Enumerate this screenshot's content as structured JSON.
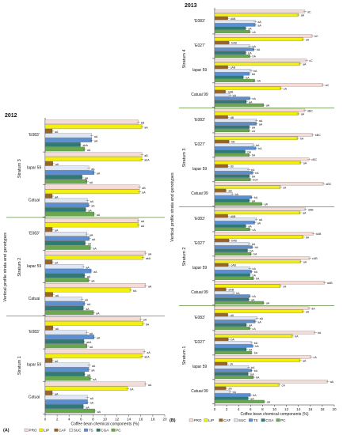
{
  "chart_data": [
    {
      "type": "bar",
      "orientation": "horizontal",
      "panel_label": "(A)",
      "year": "2012",
      "ylabel": "Vertical profile strata and genotypes",
      "xlabel": "Coffee bean chemical components (%)",
      "xlim": [
        0,
        20
      ],
      "xticks": [
        "0",
        "2",
        "4",
        "6",
        "8",
        "10",
        "12",
        "14",
        "16",
        "18",
        "20"
      ],
      "series_names": [
        "PRO",
        "LIP",
        "CAF",
        "SUC",
        "TS",
        "CGA",
        "PC"
      ],
      "strata": [
        {
          "name": "Stratum 3",
          "groups": [
            {
              "genotype": "'E083'",
              "values": [
                15.6,
                16.2,
                1.2,
                7.8,
                7.8,
                5.9,
                6.6
              ],
              "labels": [
                "bB",
                "aA",
                "aA",
                "aA",
                "aA",
                "abA",
                "aA"
              ]
            },
            {
              "genotype": "Iapar 59",
              "values": [
                16.2,
                16.2,
                1.3,
                7.3,
                8.2,
                6.2,
                7.0
              ],
              "labels": [
                "aB",
                "abA",
                "aA",
                "aA",
                "aA",
                "aA",
                "aA"
              ]
            },
            {
              "genotype": "Catuai",
              "values": [
                15.8,
                15.8,
                1.2,
                7.1,
                7.3,
                6.8,
                8.2
              ],
              "labels": [
                "aB",
                "aA",
                "aA",
                "aA",
                "aA",
                "aA",
                "aA"
              ]
            }
          ]
        },
        {
          "name": "Stratum 2",
          "groups": [
            {
              "genotype": "'E083'",
              "values": [
                15.6,
                15.6,
                1.2,
                7.0,
                7.4,
                6.7,
                7.6
              ],
              "labels": [
                "aA",
                "aA",
                "aA",
                "aA",
                "aA",
                "aA",
                "aA"
              ]
            },
            {
              "genotype": "Iapar 59",
              "values": [
                16.8,
                16.4,
                1.2,
                6.4,
                7.7,
                6.6,
                7.3
              ],
              "labels": [
                "aA",
                "abA",
                "aA",
                "aA",
                "aA",
                "aA",
                "aA"
              ]
            },
            {
              "genotype": "Catuai",
              "values": [
                16.8,
                14.3,
                1.3,
                6.2,
                6.6,
                6.4,
                8.1
              ],
              "labels": [
                "aA",
                "bA",
                "aA",
                "aA",
                "aA",
                "aA",
                "aA"
              ]
            }
          ]
        },
        {
          "name": "Stratum 1",
          "groups": [
            {
              "genotype": "'E083'",
              "values": [
                16.0,
                16.4,
                1.3,
                7.0,
                8.2,
                6.5,
                7.0
              ],
              "labels": [
                "aA",
                "bA",
                "aA",
                "aA",
                "aA",
                "abA",
                "aA"
              ]
            },
            {
              "genotype": "Iapar 59",
              "values": [
                16.6,
                16.2,
                1.2,
                7.4,
                7.3,
                6.6,
                7.6
              ],
              "labels": [
                "aA",
                "abA",
                "aA",
                "aA",
                "aA",
                "aA",
                "aA"
              ]
            },
            {
              "genotype": "Catuai",
              "values": [
                16.8,
                13.8,
                1.2,
                7.1,
                7.1,
                6.4,
                8.3
              ],
              "labels": [
                "aA",
                "bA",
                "aA",
                "aA",
                "aA",
                "aA",
                "aA"
              ]
            }
          ]
        }
      ]
    },
    {
      "type": "bar",
      "orientation": "horizontal",
      "panel_label": "(B)",
      "year": "2013",
      "ylabel": "Vertical profile strata and genotypes",
      "xlabel": "Coffee bean chemical components (%)",
      "xlim": [
        0,
        20
      ],
      "xticks": [
        "0",
        "2",
        "4",
        "6",
        "8",
        "10",
        "12",
        "14",
        "16",
        "18",
        "20"
      ],
      "series_names": [
        "PRO",
        "LIP",
        "CAF",
        "SUC",
        "TS",
        "CGA",
        "PC"
      ],
      "strata": [
        {
          "name": "Stratum 4",
          "groups": [
            {
              "genotype": "'E083'",
              "values": [
                15.1,
                14.0,
                2.2,
                6.8,
                6.8,
                5.2,
                5.9
              ],
              "labels": [
                "dC",
                "aA",
                "dAB",
                "aA",
                "aA",
                "aA",
                "cA"
              ]
            },
            {
              "genotype": "'E027'",
              "values": [
                16.3,
                14.8,
                2.4,
                5.9,
                6.6,
                5.2,
                5.9
              ],
              "labels": [
                "bC",
                "aA",
                "bAB",
                "bA",
                "bA",
                "bA",
                "bA"
              ]
            },
            {
              "genotype": "Iapar 59",
              "values": [
                15.4,
                14.3,
                2.2,
                6.1,
                5.8,
                4.8,
                6.7
              ],
              "labels": [
                "cC",
                "aA",
                "cAB",
                "bA",
                "bA",
                "bA",
                "bA"
              ]
            },
            {
              "genotype": "Catuai 99",
              "values": [
                18.1,
                11.1,
                1.8,
                2.6,
                5.9,
                5.3,
                8.2
              ],
              "labels": [
                "aC",
                "cA",
                "aAB",
                "bA",
                "bA",
                "aA",
                "aA"
              ]
            }
          ]
        },
        {
          "name": "Stratum 3",
          "groups": [
            {
              "genotype": "'E083'",
              "values": [
                15.1,
                14.0,
                2.2,
                7.0,
                7.0,
                5.8,
                5.8
              ],
              "labels": [
                "dBC",
                "aA",
                "dB",
                "aA",
                "aA",
                "aA",
                "cA"
              ]
            },
            {
              "genotype": "'E027'",
              "values": [
                16.4,
                13.9,
                2.4,
                6.5,
                6.9,
                5.1,
                5.8
              ],
              "labels": [
                "bBC",
                "bA",
                "bB",
                "bA",
                "bA",
                "bA",
                "bA"
              ]
            },
            {
              "genotype": "Iapar 59",
              "values": [
                15.8,
                14.4,
                2.2,
                5.7,
                6.4,
                5.8,
                6.0
              ],
              "labels": [
                "cBC",
                "aA",
                "cB",
                "bA",
                "bA",
                "bA",
                "bcA"
              ]
            },
            {
              "genotype": "Catuai 99",
              "values": [
                18.2,
                11.0,
                1.9,
                3.0,
                6.2,
                5.8,
                7.9
              ],
              "labels": [
                "aBC",
                "cA",
                "aB",
                "bA",
                "bA",
                "aA",
                "aA"
              ]
            }
          ]
        },
        {
          "name": "Stratum 2",
          "groups": [
            {
              "genotype": "'E083'",
              "values": [
                15.2,
                14.3,
                2.2,
                7.0,
                6.7,
                5.2,
                5.9
              ],
              "labels": [
                "dAB",
                "aA",
                "dAB",
                "aA",
                "aA",
                "aA",
                "cA"
              ]
            },
            {
              "genotype": "'E027'",
              "values": [
                16.5,
                14.8,
                2.4,
                5.8,
                6.3,
                5.5,
                6.1
              ],
              "labels": [
                "bAB",
                "bA",
                "bAB",
                "bA",
                "bA",
                "bA",
                "bA"
              ]
            },
            {
              "genotype": "Iapar 59",
              "values": [
                15.9,
                14.4,
                2.3,
                5.9,
                6.2,
                5.9,
                6.5
              ],
              "labels": [
                "cAB",
                "aA",
                "cAB",
                "bA",
                "bA",
                "bA",
                "bA"
              ]
            },
            {
              "genotype": "Catuai 99",
              "values": [
                18.4,
                11.0,
                1.9,
                3.2,
                5.9,
                5.7,
                8.2
              ],
              "labels": [
                "aAB",
                "cA",
                "aAB",
                "bA",
                "bA",
                "aA",
                "aA"
              ]
            }
          ]
        },
        {
          "name": "Stratum 1",
          "groups": [
            {
              "genotype": "'E083'",
              "values": [
                15.8,
                14.8,
                2.2,
                7.1,
                6.8,
                5.3,
                5.9
              ],
              "labels": [
                "dA",
                "aA",
                "dA",
                "aA",
                "aA",
                "aA",
                "cA"
              ]
            },
            {
              "genotype": "'E027'",
              "values": [
                16.8,
                13.0,
                2.3,
                6.2,
                6.4,
                5.3,
                6.2
              ],
              "labels": [
                "bA",
                "bA",
                "bA",
                "bA",
                "bA",
                "bA",
                "bA"
              ]
            },
            {
              "genotype": "Iapar 59",
              "values": [
                16.1,
                14.3,
                2.1,
                5.7,
                6.2,
                5.6,
                6.5
              ],
              "labels": [
                "cA",
                "aA",
                "cA",
                "bA",
                "bA",
                "bA",
                "bA"
              ]
            },
            {
              "genotype": "Catuai 99",
              "values": [
                18.9,
                10.8,
                1.9,
                2.6,
                6.0,
                5.6,
                8.3
              ],
              "labels": [
                "aA",
                "cA",
                "aA",
                "bA",
                "bA",
                "aA",
                "aA"
              ]
            }
          ]
        }
      ]
    }
  ],
  "colors": {
    "PRO": "#f7dcd6",
    "LIP": "#f3ef0f",
    "CAF": "#9c6424",
    "SUC": "#dfe7f4",
    "TS": "#5b8fd2",
    "CGA": "#2f7a76",
    "PC": "#6aa84f",
    "separator": "#5d8f3f"
  }
}
